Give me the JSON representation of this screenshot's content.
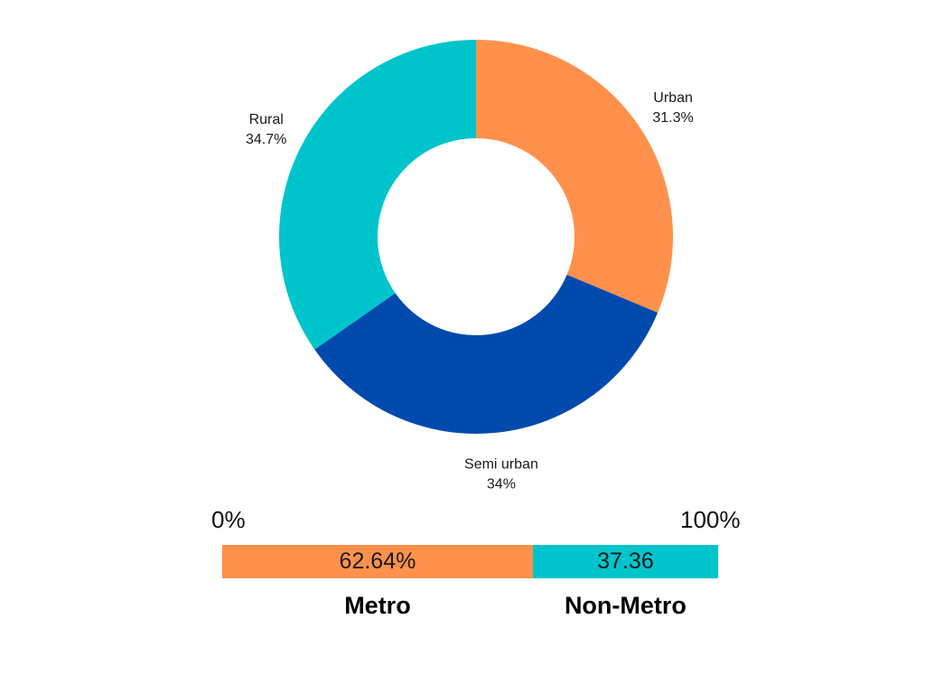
{
  "chart_data": [
    {
      "type": "pie",
      "variant": "donut",
      "slices": [
        {
          "label": "Urban",
          "value": 31.3,
          "value_label": "31.3%",
          "color": "#FF914D"
        },
        {
          "label": "Semi urban",
          "value": 34.0,
          "value_label": "34%",
          "color": "#004AAD"
        },
        {
          "label": "Rural",
          "value": 34.7,
          "value_label": "34.7%",
          "color": "#00C4CC"
        }
      ],
      "start_angle_deg": 0,
      "direction": "clockwise"
    },
    {
      "type": "bar",
      "variant": "stacked-horizontal-100",
      "axis_min_label": "0%",
      "axis_max_label": "100%",
      "segments": [
        {
          "name": "Metro",
          "value": 62.64,
          "value_label": "62.64%",
          "color": "#FF914D"
        },
        {
          "name": "Non-Metro",
          "value": 37.36,
          "value_label": "37.36",
          "color": "#00C4CC"
        }
      ]
    }
  ]
}
